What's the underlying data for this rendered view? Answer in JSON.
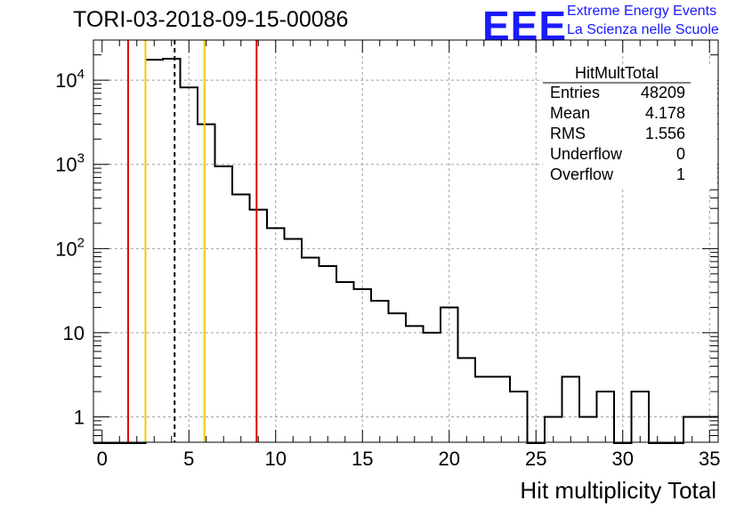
{
  "header": {
    "title": "TORI-03-2018-09-15-00086",
    "logo_text": "EEE",
    "logo_line1": "Extreme Energy Events",
    "logo_line2": "La Scienza nelle Scuole"
  },
  "stats": {
    "name": "HitMultTotal",
    "rows": [
      {
        "label": "Entries",
        "value": "48209"
      },
      {
        "label": "Mean",
        "value": "4.178"
      },
      {
        "label": "RMS",
        "value": "1.556"
      },
      {
        "label": "Underflow",
        "value": "0"
      },
      {
        "label": "Overflow",
        "value": "1"
      }
    ]
  },
  "colors": {
    "red_line": "#e00000",
    "yellow_line": "#f5c400",
    "histogram": "#000000",
    "grid": "#a0a0a0"
  },
  "chart_data": {
    "type": "histogram",
    "log_y": true,
    "grid": true,
    "xlim": [
      -0.5,
      35.5
    ],
    "ylim": [
      0.5,
      30000
    ],
    "xlabel": "Hit multiplicity Total",
    "ylabel": "",
    "x_ticks": [
      0,
      5,
      10,
      15,
      20,
      25,
      30,
      35
    ],
    "y_ticks": [
      {
        "value": 1,
        "base": "1",
        "exp": ""
      },
      {
        "value": 10,
        "base": "10",
        "exp": ""
      },
      {
        "value": 100,
        "base": "10",
        "exp": "2"
      },
      {
        "value": 1000,
        "base": "10",
        "exp": "3"
      },
      {
        "value": 10000,
        "base": "10",
        "exp": "4"
      }
    ],
    "bins": [
      {
        "x": 0,
        "count": 0
      },
      {
        "x": 1,
        "count": 0
      },
      {
        "x": 2,
        "count": 0
      },
      {
        "x": 3,
        "count": 17500
      },
      {
        "x": 4,
        "count": 18000
      },
      {
        "x": 5,
        "count": 8200
      },
      {
        "x": 6,
        "count": 3000
      },
      {
        "x": 7,
        "count": 950
      },
      {
        "x": 8,
        "count": 440
      },
      {
        "x": 9,
        "count": 290
      },
      {
        "x": 10,
        "count": 175
      },
      {
        "x": 11,
        "count": 130
      },
      {
        "x": 12,
        "count": 78
      },
      {
        "x": 13,
        "count": 62
      },
      {
        "x": 14,
        "count": 40
      },
      {
        "x": 15,
        "count": 33
      },
      {
        "x": 16,
        "count": 24
      },
      {
        "x": 17,
        "count": 17
      },
      {
        "x": 18,
        "count": 12
      },
      {
        "x": 19,
        "count": 10
      },
      {
        "x": 20,
        "count": 20
      },
      {
        "x": 21,
        "count": 5
      },
      {
        "x": 22,
        "count": 3
      },
      {
        "x": 23,
        "count": 3
      },
      {
        "x": 24,
        "count": 2
      },
      {
        "x": 25,
        "count": 0
      },
      {
        "x": 26,
        "count": 1
      },
      {
        "x": 27,
        "count": 3
      },
      {
        "x": 28,
        "count": 1
      },
      {
        "x": 29,
        "count": 2
      },
      {
        "x": 30,
        "count": 0
      },
      {
        "x": 31,
        "count": 2
      },
      {
        "x": 32,
        "count": 0
      },
      {
        "x": 33,
        "count": 0
      },
      {
        "x": 34,
        "count": 1
      },
      {
        "x": 35,
        "count": 1
      }
    ],
    "vertical_lines": [
      {
        "x": 1.5,
        "color": "red",
        "style": "solid"
      },
      {
        "x": 2.5,
        "color": "yellow",
        "style": "solid"
      },
      {
        "x": 4.178,
        "color": "black",
        "style": "dashed"
      },
      {
        "x": 5.9,
        "color": "yellow",
        "style": "solid"
      },
      {
        "x": 8.9,
        "color": "red",
        "style": "solid"
      }
    ]
  }
}
